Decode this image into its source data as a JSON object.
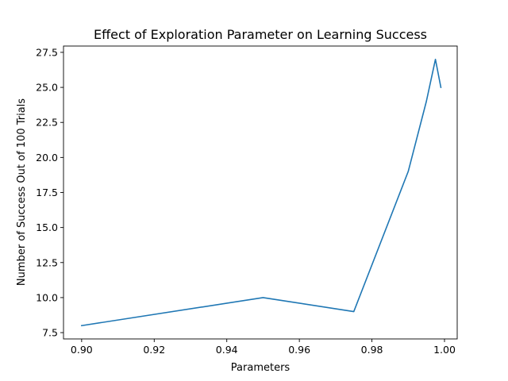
{
  "chart_data": {
    "type": "line",
    "title": "Effect of Exploration Parameter on Learning Success",
    "xlabel": "Parameters",
    "ylabel": "Number of Success Out of 100 Trials",
    "xlim": [
      0.895,
      1.0035
    ],
    "ylim": [
      7.05,
      27.95
    ],
    "x_ticks": [
      0.9,
      0.92,
      0.94,
      0.96,
      0.98,
      1.0
    ],
    "x_tick_labels": [
      "0.90",
      "0.92",
      "0.94",
      "0.96",
      "0.98",
      "1.00"
    ],
    "y_ticks": [
      7.5,
      10.0,
      12.5,
      15.0,
      17.5,
      20.0,
      22.5,
      25.0,
      27.5
    ],
    "y_tick_labels": [
      "7.5",
      "10.0",
      "12.5",
      "15.0",
      "17.5",
      "20.0",
      "22.5",
      "25.0",
      "27.5"
    ],
    "grid": false,
    "series": [
      {
        "color": "#1f77b4",
        "x": [
          0.9,
          0.95,
          0.975,
          0.99,
          0.995,
          0.9975,
          0.999
        ],
        "y": [
          8,
          10,
          9,
          19,
          24,
          27,
          25
        ]
      }
    ]
  }
}
